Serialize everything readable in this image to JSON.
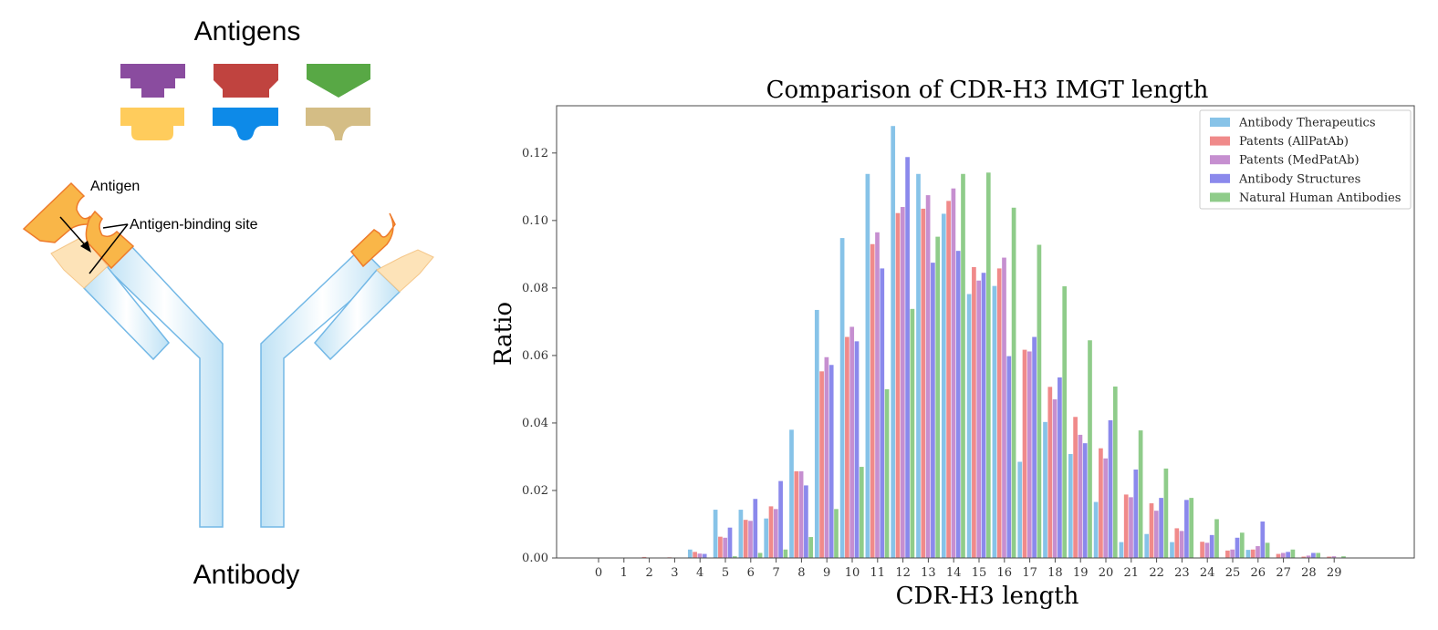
{
  "diagram": {
    "antigens_title": "Antigens",
    "antigen_label": "Antigen",
    "binding_site_label": "Antigen-binding site",
    "antibody_title": "Antibody",
    "antigen_colors": [
      "#8a4c9f",
      "#c0433f",
      "#58a845",
      "#ffcc5c",
      "#0d8ae8",
      "#d4bd85"
    ]
  },
  "chart_data": {
    "type": "bar",
    "title": "Comparison of CDR-H3 IMGT length",
    "xlabel": "CDR-H3 length",
    "ylabel": "Ratio",
    "categories": [
      "0",
      "1",
      "2",
      "3",
      "4",
      "5",
      "6",
      "7",
      "8",
      "9",
      "10",
      "11",
      "12",
      "13",
      "14",
      "15",
      "16",
      "17",
      "18",
      "19",
      "20",
      "21",
      "22",
      "23",
      "24",
      "25",
      "26",
      "27",
      "28",
      "29"
    ],
    "ylim": [
      0,
      0.134
    ],
    "yticks": [
      0.0,
      0.02,
      0.04,
      0.06,
      0.08,
      0.1,
      0.12
    ],
    "ytick_labels": [
      "0.00",
      "0.02",
      "0.04",
      "0.06",
      "0.08",
      "0.10",
      "0.12"
    ],
    "legend_position": "top-right",
    "grid": false,
    "series": [
      {
        "name": "Antibody Therapeutics",
        "color": "#87c3e8",
        "values": [
          0,
          0,
          0,
          0,
          0.0025,
          0.0143,
          0.0143,
          0.0117,
          0.038,
          0.0735,
          0.0948,
          0.1138,
          0.128,
          0.1138,
          0.102,
          0.0782,
          0.0806,
          0.0285,
          0.0403,
          0.0308,
          0.0166,
          0.0047,
          0.0071,
          0.0047,
          0,
          0,
          0.0024,
          0,
          0,
          0
        ]
      },
      {
        "name": "Patents (AllPatAb)",
        "color": "#f08a8a",
        "values": [
          0,
          0,
          0.0003,
          0.0002,
          0.0018,
          0.0063,
          0.0113,
          0.0153,
          0.0257,
          0.0553,
          0.0655,
          0.093,
          0.1022,
          0.1035,
          0.1058,
          0.0862,
          0.0858,
          0.0617,
          0.0507,
          0.0418,
          0.0325,
          0.0188,
          0.0162,
          0.0088,
          0.0048,
          0.0022,
          0.0025,
          0.0012,
          0.0004,
          0.0004
        ]
      },
      {
        "name": "Patents (MedPatAb)",
        "color": "#c68fd0",
        "values": [
          0,
          0,
          0,
          0,
          0.0013,
          0.006,
          0.011,
          0.0145,
          0.0257,
          0.0595,
          0.0685,
          0.0965,
          0.104,
          0.1075,
          0.1095,
          0.0822,
          0.089,
          0.0612,
          0.047,
          0.0365,
          0.0295,
          0.018,
          0.014,
          0.008,
          0.0045,
          0.0025,
          0.0035,
          0.0015,
          0.0007,
          0.0005
        ]
      },
      {
        "name": "Antibody Structures",
        "color": "#8b89ec",
        "values": [
          0,
          0,
          0,
          0,
          0.0012,
          0.009,
          0.0175,
          0.0228,
          0.0215,
          0.0572,
          0.0642,
          0.0858,
          0.1188,
          0.0875,
          0.091,
          0.0845,
          0.0598,
          0.0655,
          0.0535,
          0.034,
          0.0408,
          0.0262,
          0.0178,
          0.0172,
          0.0068,
          0.006,
          0.0108,
          0.0018,
          0.0015,
          0
        ]
      },
      {
        "name": "Natural Human Antibodies",
        "color": "#8fcc8a",
        "values": [
          0,
          0,
          0,
          0,
          0,
          0.0005,
          0.0015,
          0.0025,
          0.0062,
          0.0145,
          0.027,
          0.05,
          0.0738,
          0.0952,
          0.1138,
          0.1142,
          0.1038,
          0.0928,
          0.0805,
          0.0645,
          0.0508,
          0.0378,
          0.0265,
          0.0178,
          0.0115,
          0.0075,
          0.0045,
          0.0025,
          0.0015,
          0.0005
        ]
      }
    ]
  }
}
